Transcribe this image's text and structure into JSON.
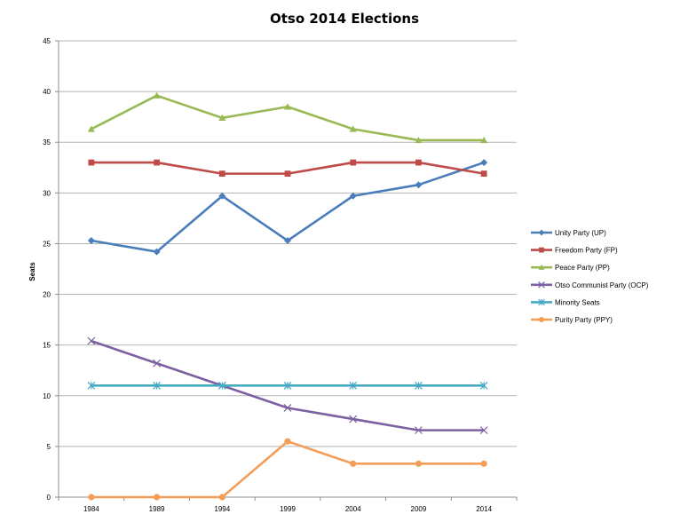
{
  "chart_data": {
    "type": "line",
    "title": "Otso 2014 Elections",
    "xlabel": "",
    "ylabel": "Seats",
    "ylim": [
      0,
      45
    ],
    "ytick_step": 5,
    "grid": true,
    "legend_position": "right",
    "categories": [
      "1984",
      "1989",
      "1994",
      "1999",
      "2004",
      "2009",
      "2014"
    ],
    "series": [
      {
        "name": "Unity Party (UP)",
        "color": "#4a7ebb",
        "marker": "diamond",
        "values": [
          25.3,
          24.2,
          29.7,
          25.3,
          29.7,
          30.8,
          33
        ]
      },
      {
        "name": "Freedom Party (FP)",
        "color": "#be4b48",
        "marker": "square",
        "values": [
          33,
          33,
          31.9,
          31.9,
          33,
          33,
          31.9
        ]
      },
      {
        "name": "Peace Party (PP)",
        "color": "#98b954",
        "marker": "triangle",
        "values": [
          36.3,
          39.6,
          37.4,
          38.5,
          36.3,
          35.2,
          35.2
        ]
      },
      {
        "name": "Otso Communist Party (OCP)",
        "color": "#7d60a0",
        "marker": "x",
        "values": [
          15.4,
          13.2,
          11,
          8.8,
          7.7,
          6.6,
          6.6
        ]
      },
      {
        "name": "Minority Seats",
        "color": "#46aac5",
        "marker": "star",
        "values": [
          11,
          11,
          11,
          11,
          11,
          11,
          11
        ]
      },
      {
        "name": "Purity Party (PPY)",
        "color": "#f59d56",
        "marker": "circle",
        "values": [
          0,
          0,
          0,
          5.5,
          3.3,
          3.3,
          3.3
        ]
      }
    ]
  }
}
